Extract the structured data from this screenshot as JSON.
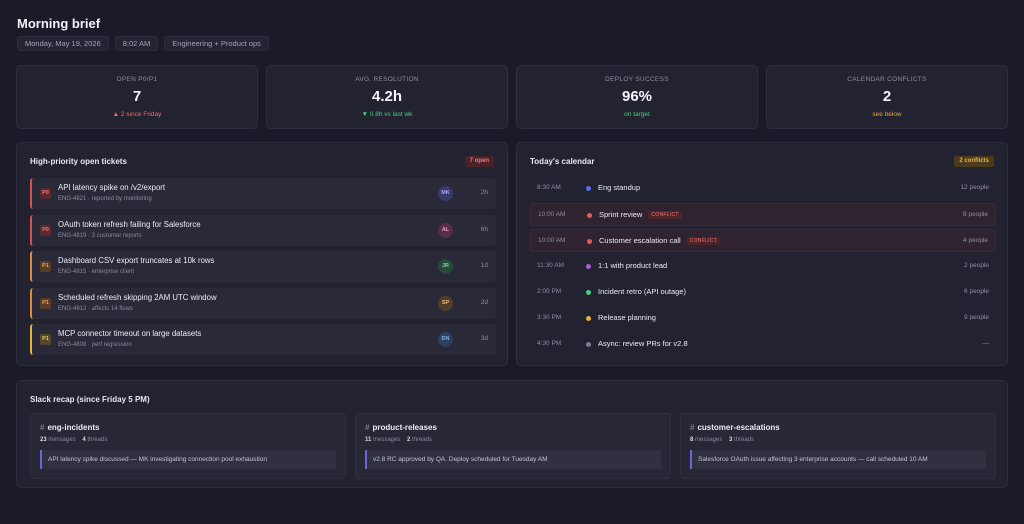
{
  "header": {
    "title": "Morning brief",
    "date": "Monday, May 19, 2026",
    "time": "8:02 AM",
    "team": "Engineering + Product ops"
  },
  "stats": [
    {
      "label": "OPEN P0/P1",
      "value": "7",
      "sub": "▲ 2 since Friday",
      "tone": "red"
    },
    {
      "label": "AVG. RESOLUTION",
      "value": "4.2h",
      "sub": "▼ 0.8h vs last wk",
      "tone": "green"
    },
    {
      "label": "DEPLOY SUCCESS",
      "value": "96%",
      "sub": "on target",
      "tone": "green"
    },
    {
      "label": "CALENDAR CONFLICTS",
      "value": "2",
      "sub": "see below",
      "tone": "amber"
    }
  ],
  "tickets": {
    "title": "High-priority open tickets",
    "badge": "7 open",
    "items": [
      {
        "prio": "P0",
        "title": "API latency spike on /v2/export",
        "meta": "ENG-4821 · reported by monitoring",
        "assignee": "MK",
        "age": "2h"
      },
      {
        "prio": "P0",
        "title": "OAuth token refresh failing for Salesforce",
        "meta": "ENG-4819 · 3 customer reports",
        "assignee": "AL",
        "age": "6h"
      },
      {
        "prio": "P1",
        "title": "Dashboard CSV export truncates at 10k rows",
        "meta": "ENG-4815 · enterprise client",
        "assignee": "JR",
        "age": "1d"
      },
      {
        "prio": "P1",
        "title": "Scheduled refresh skipping 2AM UTC window",
        "meta": "ENG-4812 · affects 14 flows",
        "assignee": "SP",
        "age": "2d"
      },
      {
        "prio": "P1",
        "title": "MCP connector timeout on large datasets",
        "meta": "ENG-4808 · perf regression",
        "assignee": "DN",
        "age": "3d"
      }
    ]
  },
  "calendar": {
    "title": "Today's calendar",
    "badge": "2 conflicts",
    "conflict_label": "CONFLICT",
    "events": [
      {
        "time": "8:30 AM",
        "title": "Eng standup",
        "people": "12 people",
        "color": "#5b6cf0",
        "conflict": false
      },
      {
        "time": "10:00 AM",
        "title": "Sprint review",
        "people": "8 people",
        "color": "#e85a5a",
        "conflict": true
      },
      {
        "time": "10:00 AM",
        "title": "Customer escalation call",
        "people": "4 people",
        "color": "#e85a5a",
        "conflict": true
      },
      {
        "time": "11:30 AM",
        "title": "1:1 with product lead",
        "people": "2 people",
        "color": "#b25ad8",
        "conflict": false
      },
      {
        "time": "2:00 PM",
        "title": "Incident retro (API outage)",
        "people": "6 people",
        "color": "#3fcf7e",
        "conflict": false
      },
      {
        "time": "3:30 PM",
        "title": "Release planning",
        "people": "9 people",
        "color": "#e8b23a",
        "conflict": false
      },
      {
        "time": "4:30 PM",
        "title": "Async: review PRs for v2.8",
        "people": "—",
        "color": "#7d7c8e",
        "conflict": false
      }
    ]
  },
  "slack": {
    "title": "Slack recap (since Friday 5 PM)",
    "channels": [
      {
        "name": "eng-incidents",
        "messages": "23",
        "threads": "4",
        "summary": "API latency spike discussed — MK investigating connection pool exhaustion"
      },
      {
        "name": "product-releases",
        "messages": "11",
        "threads": "2",
        "summary": "v2.8 RC approved by QA. Deploy scheduled for Tuesday AM"
      },
      {
        "name": "customer-escalations",
        "messages": "8",
        "threads": "3",
        "summary": "Salesforce OAuth issue affecting 3 enterprise accounts — call scheduled 10 AM"
      }
    ]
  },
  "colors": {
    "background": "#1b1a28",
    "card": "#232231",
    "red": "#ef6a6a",
    "green": "#48d27a",
    "amber": "#e5a43b",
    "accent": "#6a66d6"
  }
}
